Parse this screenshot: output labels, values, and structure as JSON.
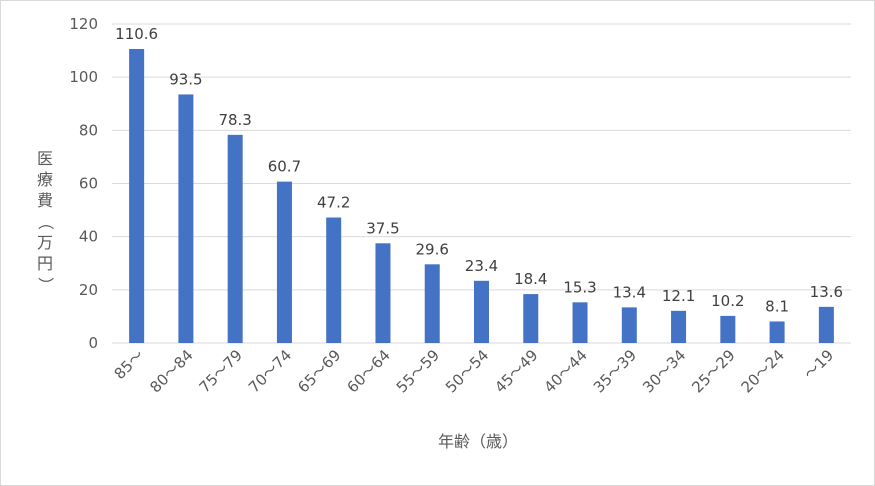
{
  "chart_data": {
    "type": "bar",
    "categories": [
      "85～",
      "80～84",
      "75～79",
      "70～74",
      "65～69",
      "60～64",
      "55～59",
      "50～54",
      "45～49",
      "40～44",
      "35～39",
      "30～34",
      "25～29",
      "20～24",
      "～19"
    ],
    "values": [
      110.6,
      93.5,
      78.3,
      60.7,
      47.2,
      37.5,
      29.6,
      23.4,
      18.4,
      15.3,
      13.4,
      12.1,
      10.2,
      8.1,
      13.6
    ],
    "data_labels": [
      "110.6",
      "93.5",
      "78.3",
      "60.7",
      "47.2",
      "37.5",
      "29.6",
      "23.4",
      "18.4",
      "15.3",
      "13.4",
      "12.1",
      "10.2",
      "8.1",
      "13.6"
    ],
    "yticks": [
      "0",
      "20",
      "40",
      "60",
      "80",
      "100",
      "120"
    ],
    "ytick_values": [
      0,
      20,
      40,
      60,
      80,
      100,
      120
    ],
    "ylim": [
      0,
      120
    ],
    "xlabel": "年齢（歳）",
    "ylabel_chars": [
      "医",
      "療",
      "費",
      "（",
      "万",
      "円",
      "）"
    ],
    "grid": true,
    "legend": "none",
    "bar_color": "#4472c4",
    "grid_color": "#d9d9d9"
  }
}
